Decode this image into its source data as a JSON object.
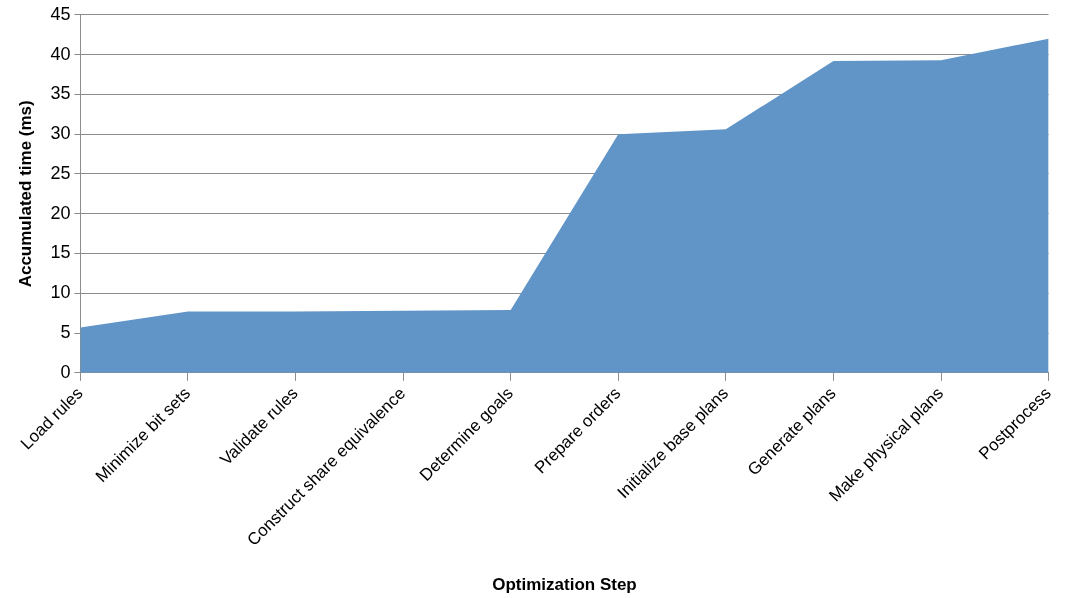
{
  "chart_data": {
    "type": "area",
    "xlabel": "Optimization Step",
    "ylabel": "Accumulated time (ms)",
    "categories": [
      "Load rules",
      "Minimize bit sets",
      "Validate rules",
      "Construct share equivalence",
      "Determine goals",
      "Prepare orders",
      "Initialize base plans",
      "Generate plans",
      "Make physical plans",
      "Postprocess"
    ],
    "values": [
      5.7,
      7.7,
      7.7,
      7.8,
      7.9,
      30.0,
      30.6,
      39.2,
      39.3,
      42
    ],
    "color": "#6195c8",
    "ylim": [
      0,
      45
    ],
    "yticks": [
      0,
      5,
      10,
      15,
      20,
      25,
      30,
      35,
      40,
      45
    ],
    "grid": "y",
    "marker": "none"
  }
}
